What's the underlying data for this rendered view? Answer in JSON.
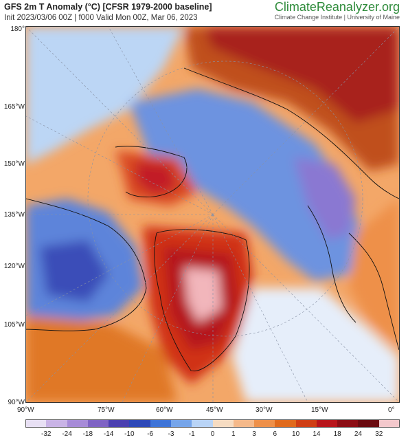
{
  "header": {
    "title": "GFS 2m T Anomaly (°C) [CFSR 1979-2000 baseline]",
    "subtitle": "Init 2023/03/06 00Z | f000 Valid Mon 00Z, Mar 06, 2023",
    "brand": "ClimateReanalyzer",
    "brand_tld": ".org",
    "brand_sub": "Climate Change Institute | University of Maine"
  },
  "latitude_labels": [
    "180°",
    "165°W",
    "150°W",
    "135°W",
    "120°W",
    "105°W",
    "90°W"
  ],
  "longitude_labels": [
    "90°W",
    "75°W",
    "60°W",
    "45°W",
    "30°W",
    "15°W",
    "0°"
  ],
  "colorbar": {
    "labels": [
      "-32",
      "-24",
      "-18",
      "-14",
      "-10",
      "-6",
      "-3",
      "-1",
      "0",
      "1",
      "3",
      "6",
      "10",
      "14",
      "18",
      "24",
      "32"
    ],
    "colors": [
      "#e8e0f4",
      "#c9b3e6",
      "#a78bd8",
      "#7f63c4",
      "#4b3fb0",
      "#2d48b8",
      "#3e74d8",
      "#76a5ea",
      "#b9d4f6",
      "#f6dcc2",
      "#f5b98a",
      "#ee9049",
      "#e06a1c",
      "#cf3e14",
      "#b8151b",
      "#8c0d14",
      "#6a0a0f",
      "#f3c8cc"
    ]
  },
  "map": {
    "colors": {
      "warm_light": "#f3a768",
      "warm": "#e07828",
      "warm_dark": "#c0501c",
      "hot": "#b51c22",
      "hottest": "#f2b6bb",
      "cold_light": "#bcd6f5",
      "cold": "#5d84da",
      "cold_dark": "#3a4db8",
      "coldest": "#9a7fd6",
      "neutral": "#f2f4fa"
    }
  }
}
